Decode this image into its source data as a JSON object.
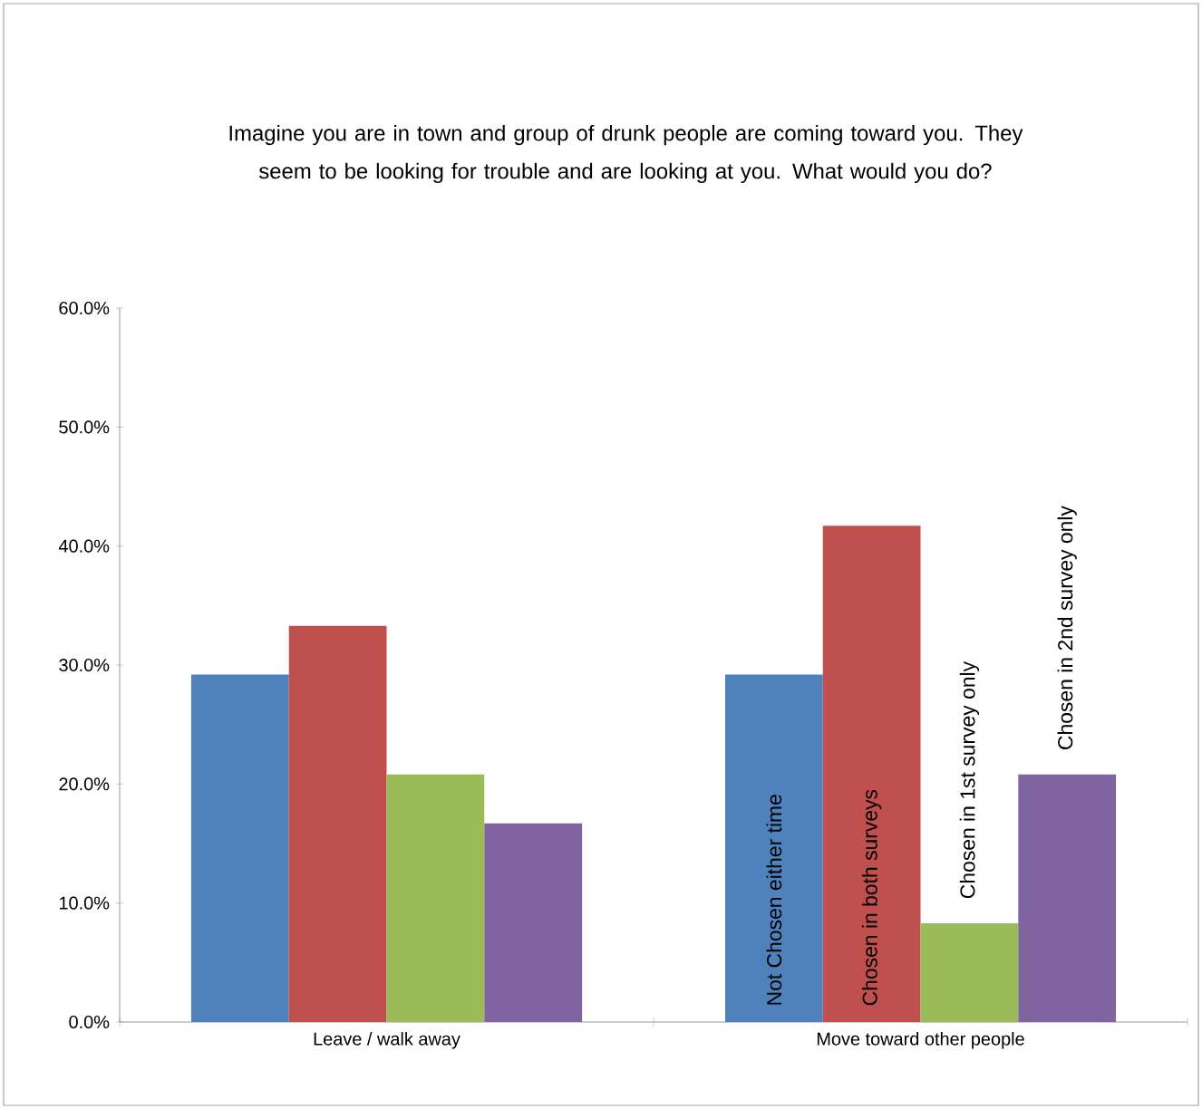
{
  "chart_data": {
    "type": "bar",
    "title": "Imagine you are in town and group of drunk people are coming toward you. They seem to be looking for trouble and are looking at you.   What would you do?",
    "categories": [
      "Leave / walk away",
      "Move toward other people"
    ],
    "series": [
      {
        "name": "Not Chosen either  time",
        "color": "#4f81bd",
        "values": [
          29.2,
          29.2
        ]
      },
      {
        "name": "Chosen in both surveys",
        "color": "#c0504d",
        "values": [
          33.3,
          41.7
        ]
      },
      {
        "name": "Chosen in 1st survey only",
        "color": "#9bbb59",
        "values": [
          20.8,
          8.3
        ]
      },
      {
        "name": "Chosen in 2nd survey only",
        "color": "#8064a2",
        "values": [
          16.7,
          20.8
        ]
      }
    ],
    "ylim": [
      0,
      60
    ],
    "yticks": [
      {
        "value": 0,
        "label": "0.0%"
      },
      {
        "value": 10,
        "label": "10.0%"
      },
      {
        "value": 20,
        "label": "20.0%"
      },
      {
        "value": 30,
        "label": "30.0%"
      },
      {
        "value": 40,
        "label": "40.0%"
      },
      {
        "value": 50,
        "label": "50.0%"
      },
      {
        "value": 60,
        "label": "60.0%"
      }
    ],
    "grid": false,
    "legend": false
  }
}
